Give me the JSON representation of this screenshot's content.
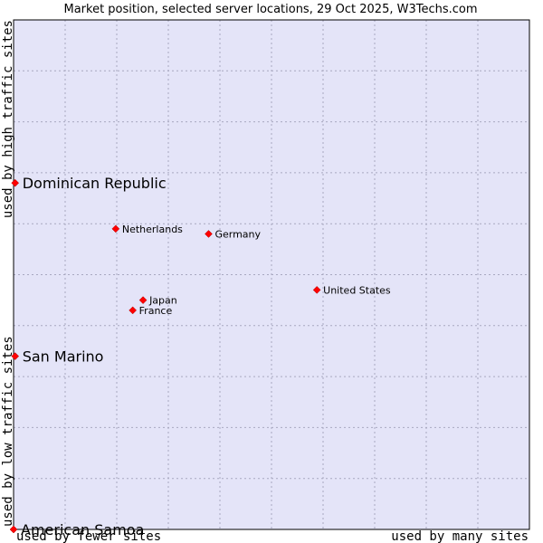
{
  "colors": {
    "plot_background": "#e4e4f8",
    "grid": "#a8a8c0",
    "border": "#000000",
    "marker": "#ff0000"
  },
  "chart_data": {
    "type": "scatter",
    "title": "Market position, selected server locations, 29 Oct 2025, W3Techs.com",
    "xlabel_left": "used by fewer sites",
    "xlabel_right": "used by many sites",
    "ylabel_bottom": "used by low traffic sites",
    "ylabel_top": "used by high traffic sites",
    "xlim": [
      0,
      100
    ],
    "ylim": [
      0,
      100
    ],
    "grid": true,
    "grid_divisions": 10,
    "points": [
      {
        "name": "Dominican Republic",
        "x": 0.3,
        "y": 68.0,
        "label_size": "large"
      },
      {
        "name": "Netherlands",
        "x": 19.8,
        "y": 59.0,
        "label_size": "small"
      },
      {
        "name": "Germany",
        "x": 37.8,
        "y": 58.0,
        "label_size": "small"
      },
      {
        "name": "United States",
        "x": 58.8,
        "y": 47.0,
        "label_size": "small"
      },
      {
        "name": "Japan",
        "x": 25.1,
        "y": 45.0,
        "label_size": "small"
      },
      {
        "name": "France",
        "x": 23.1,
        "y": 43.0,
        "label_size": "small"
      },
      {
        "name": "San Marino",
        "x": 0.3,
        "y": 34.0,
        "label_size": "large"
      },
      {
        "name": "American Samoa",
        "x": 0.0,
        "y": 0.0,
        "label_size": "large"
      }
    ]
  }
}
